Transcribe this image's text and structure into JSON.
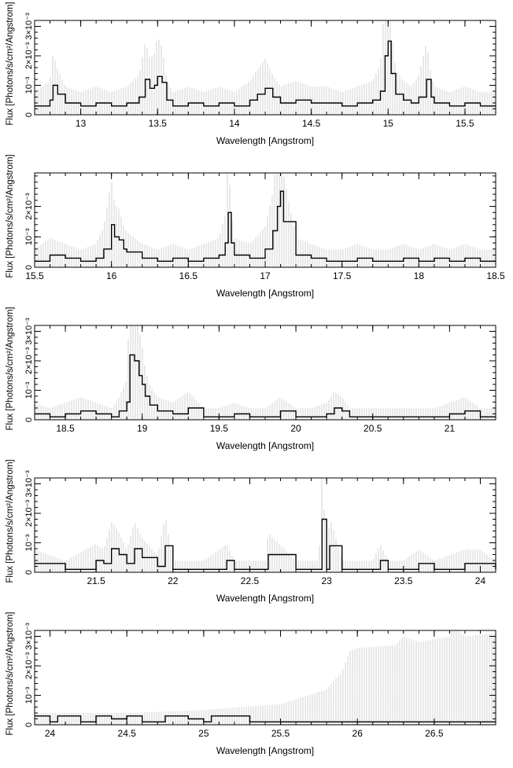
{
  "chart_data": [
    {
      "type": "line",
      "xlabel": "Wavelength [Angstrom]",
      "ylabel": "Flux [Photons/s/cm²/Angstrom]",
      "xlim": [
        12.7,
        15.7
      ],
      "ylim": [
        0,
        0.0032
      ],
      "xticks": [
        {
          "v": 13,
          "label": "13"
        },
        {
          "v": 13.5,
          "label": "13.5"
        },
        {
          "v": 14,
          "label": "14"
        },
        {
          "v": 14.5,
          "label": "14.5"
        },
        {
          "v": 15,
          "label": "15"
        },
        {
          "v": 15.5,
          "label": "15.5"
        }
      ],
      "yticks": [
        {
          "v": 0,
          "label": "0"
        },
        {
          "v": 0.001,
          "label": "10⁻³"
        },
        {
          "v": 0.002,
          "label": "2×10⁻³"
        },
        {
          "v": 0.003,
          "label": "3×10⁻³"
        }
      ],
      "series": [
        {
          "x": [
            12.7,
            12.8,
            12.82,
            12.85,
            12.9,
            13.0,
            13.1,
            13.2,
            13.3,
            13.38,
            13.42,
            13.45,
            13.48,
            13.5,
            13.53,
            13.56,
            13.6,
            13.7,
            13.8,
            13.9,
            14.0,
            14.1,
            14.15,
            14.2,
            14.25,
            14.3,
            14.4,
            14.5,
            14.6,
            14.7,
            14.8,
            14.9,
            14.95,
            14.98,
            15.0,
            15.02,
            15.05,
            15.1,
            15.15,
            15.2,
            15.25,
            15.28,
            15.3,
            15.4,
            15.5,
            15.6,
            15.7
          ],
          "y": [
            0.0003,
            0.0005,
            0.001,
            0.0007,
            0.0004,
            0.0003,
            0.0004,
            0.0003,
            0.0004,
            0.0006,
            0.0012,
            0.0009,
            0.001,
            0.0013,
            0.0011,
            0.0005,
            0.0003,
            0.0004,
            0.0003,
            0.0004,
            0.0003,
            0.0005,
            0.0007,
            0.0009,
            0.0006,
            0.0004,
            0.0005,
            0.0004,
            0.0004,
            0.0003,
            0.0004,
            0.0005,
            0.0008,
            0.002,
            0.0025,
            0.0014,
            0.0007,
            0.0005,
            0.0004,
            0.0006,
            0.0012,
            0.0006,
            0.0004,
            0.0003,
            0.0004,
            0.0003,
            0.0003
          ]
        }
      ]
    },
    {
      "type": "line",
      "xlabel": "Wavelength [Angstrom]",
      "ylabel": "Flux [Photons/s/cm²/Angstrom]",
      "xlim": [
        15.5,
        18.5
      ],
      "ylim": [
        0,
        0.0031
      ],
      "xticks": [
        {
          "v": 15.5,
          "label": "15.5"
        },
        {
          "v": 16,
          "label": "16"
        },
        {
          "v": 16.5,
          "label": "16.5"
        },
        {
          "v": 17,
          "label": "17"
        },
        {
          "v": 17.5,
          "label": "17.5"
        },
        {
          "v": 18,
          "label": "18"
        },
        {
          "v": 18.5,
          "label": "18.5"
        }
      ],
      "yticks": [
        {
          "v": 0,
          "label": "0"
        },
        {
          "v": 0.001,
          "label": "10⁻³"
        },
        {
          "v": 0.002,
          "label": "2×10⁻³"
        }
      ],
      "series": [
        {
          "x": [
            15.5,
            15.6,
            15.7,
            15.8,
            15.9,
            15.95,
            16.0,
            16.02,
            16.05,
            16.08,
            16.1,
            16.2,
            16.3,
            16.4,
            16.5,
            16.6,
            16.7,
            16.74,
            16.76,
            16.78,
            16.8,
            16.9,
            17.0,
            17.05,
            17.08,
            17.1,
            17.12,
            17.2,
            17.3,
            17.4,
            17.5,
            17.6,
            17.7,
            17.8,
            17.9,
            18.0,
            18.1,
            18.2,
            18.3,
            18.4,
            18.5
          ],
          "y": [
            0.0002,
            0.0004,
            0.0003,
            0.0002,
            0.0003,
            0.0006,
            0.0014,
            0.001,
            0.0009,
            0.0006,
            0.0005,
            0.0003,
            0.0002,
            0.0003,
            0.0002,
            0.0003,
            0.0004,
            0.0008,
            0.0018,
            0.0008,
            0.0004,
            0.0003,
            0.0006,
            0.0012,
            0.002,
            0.0025,
            0.0015,
            0.0004,
            0.0003,
            0.0002,
            0.0002,
            0.0003,
            0.0002,
            0.0002,
            0.0003,
            0.0002,
            0.0003,
            0.0002,
            0.0003,
            0.0002,
            0.0002
          ]
        }
      ]
    },
    {
      "type": "line",
      "xlabel": "Wavelength [Angstrom]",
      "ylabel": "Flux [Photons/s/cm²/Angstrom]",
      "xlim": [
        18.3,
        21.3
      ],
      "ylim": [
        0,
        0.0032
      ],
      "xticks": [
        {
          "v": 18.5,
          "label": "18.5"
        },
        {
          "v": 19,
          "label": "19"
        },
        {
          "v": 19.5,
          "label": "19.5"
        },
        {
          "v": 20,
          "label": "20"
        },
        {
          "v": 20.5,
          "label": "20.5"
        },
        {
          "v": 21,
          "label": "21"
        }
      ],
      "yticks": [
        {
          "v": 0,
          "label": "0"
        },
        {
          "v": 0.001,
          "label": "10⁻³"
        },
        {
          "v": 0.002,
          "label": "2×10⁻³"
        },
        {
          "v": 0.003,
          "label": "3×10⁻³"
        }
      ],
      "series": [
        {
          "x": [
            18.3,
            18.4,
            18.5,
            18.6,
            18.7,
            18.8,
            18.85,
            18.9,
            18.92,
            18.95,
            18.98,
            19.0,
            19.02,
            19.05,
            19.1,
            19.2,
            19.3,
            19.4,
            19.5,
            19.6,
            19.7,
            19.8,
            19.9,
            20.0,
            20.1,
            20.2,
            20.25,
            20.3,
            20.35,
            20.4,
            20.5,
            20.6,
            20.7,
            20.8,
            20.9,
            21.0,
            21.1,
            21.2,
            21.3
          ],
          "y": [
            0.0002,
            0.0001,
            0.0002,
            0.0003,
            0.0002,
            0.0001,
            0.0003,
            0.0006,
            0.0022,
            0.002,
            0.0015,
            0.0012,
            0.0008,
            0.0005,
            0.0003,
            0.0002,
            0.0004,
            0.0001,
            0.0001,
            0.0002,
            0.0001,
            0.0001,
            0.0003,
            0.0001,
            0.0001,
            0.0002,
            0.0004,
            0.0003,
            0.0001,
            0.0001,
            0.0001,
            0.0001,
            0.0001,
            0.0001,
            0.0001,
            0.0002,
            0.0003,
            0.0001,
            0.0001
          ]
        }
      ]
    },
    {
      "type": "line",
      "xlabel": "Wavelength [Angstrom]",
      "ylabel": "Flux [Photons/s/cm²/Angstrom]",
      "xlim": [
        21.1,
        24.1
      ],
      "ylim": [
        0,
        0.0032
      ],
      "xticks": [
        {
          "v": 21.5,
          "label": "21.5"
        },
        {
          "v": 22,
          "label": "22"
        },
        {
          "v": 22.5,
          "label": "22.5"
        },
        {
          "v": 23,
          "label": "23"
        },
        {
          "v": 23.5,
          "label": "23.5"
        },
        {
          "v": 24,
          "label": "24"
        }
      ],
      "yticks": [
        {
          "v": 0,
          "label": "0"
        },
        {
          "v": 0.001,
          "label": "10⁻³"
        },
        {
          "v": 0.002,
          "label": "2×10⁻³"
        },
        {
          "v": 0.003,
          "label": "3×10⁻³"
        }
      ],
      "series": [
        {
          "x": [
            21.1,
            21.3,
            21.5,
            21.55,
            21.6,
            21.65,
            21.7,
            21.75,
            21.8,
            21.9,
            21.95,
            22.0,
            22.2,
            22.35,
            22.4,
            22.6,
            22.62,
            22.8,
            22.95,
            22.97,
            23.0,
            23.02,
            23.1,
            23.3,
            23.35,
            23.4,
            23.5,
            23.6,
            23.7,
            23.9,
            24.0,
            24.1
          ],
          "y": [
            0.0003,
            0.0001,
            0.0004,
            0.0003,
            0.0008,
            0.0006,
            0.0003,
            0.0008,
            0.0005,
            0.0002,
            0.0009,
            0.0001,
            0.0001,
            0.0004,
            0.0001,
            0.0001,
            0.0006,
            0.0001,
            0.0001,
            0.0018,
            0.0001,
            0.0009,
            0.0001,
            0.0001,
            0.0004,
            0.0001,
            0.0001,
            0.0003,
            0.0001,
            0.0003,
            0.0003,
            0.0001
          ]
        }
      ]
    },
    {
      "type": "line",
      "xlabel": "Wavelength [Angstrom]",
      "ylabel": "Flux [Photons/s/cm²/Angstrom]",
      "xlim": [
        23.9,
        26.9
      ],
      "ylim": [
        0,
        0.0032
      ],
      "xticks": [
        {
          "v": 24,
          "label": "24"
        },
        {
          "v": 24.5,
          "label": "24.5"
        },
        {
          "v": 25,
          "label": "25"
        },
        {
          "v": 25.5,
          "label": "25.5"
        },
        {
          "v": 26,
          "label": "26"
        },
        {
          "v": 26.5,
          "label": "26.5"
        }
      ],
      "yticks": [
        {
          "v": 0,
          "label": "0"
        },
        {
          "v": 0.001,
          "label": "10⁻³"
        },
        {
          "v": 0.002,
          "label": "2×10⁻³"
        },
        {
          "v": 0.003,
          "label": "3×10⁻³"
        }
      ],
      "series": [
        {
          "x": [
            23.9,
            24.0,
            24.05,
            24.2,
            24.3,
            24.4,
            24.5,
            24.6,
            24.75,
            24.85,
            24.9,
            25.0,
            25.05,
            25.1,
            25.3,
            25.5,
            25.7,
            25.9,
            26.1,
            26.3,
            26.5,
            26.7,
            26.9
          ],
          "y": [
            0.0003,
            0.0001,
            0.0003,
            0.0001,
            0.0003,
            0.0002,
            0.0003,
            0.0001,
            0.0003,
            0.0003,
            0.0002,
            0.0001,
            0.0003,
            0.0003,
            0.0001,
            0.0001,
            0.0001,
            0.0001,
            0.0001,
            0.0001,
            0.0001,
            0.0001,
            0.0001
          ]
        }
      ],
      "errors": {
        "x": [
          23.9,
          24.5,
          25.0,
          25.5,
          25.8,
          25.9,
          25.95,
          26.0,
          26.25,
          26.3,
          26.4,
          26.6,
          26.62,
          26.7,
          26.9
        ],
        "upper": [
          0.0004,
          0.0004,
          0.0005,
          0.0007,
          0.0012,
          0.0018,
          0.0025,
          0.0026,
          0.0027,
          0.003,
          0.0028,
          0.003,
          0.0033,
          0.003,
          0.0031
        ]
      }
    }
  ]
}
